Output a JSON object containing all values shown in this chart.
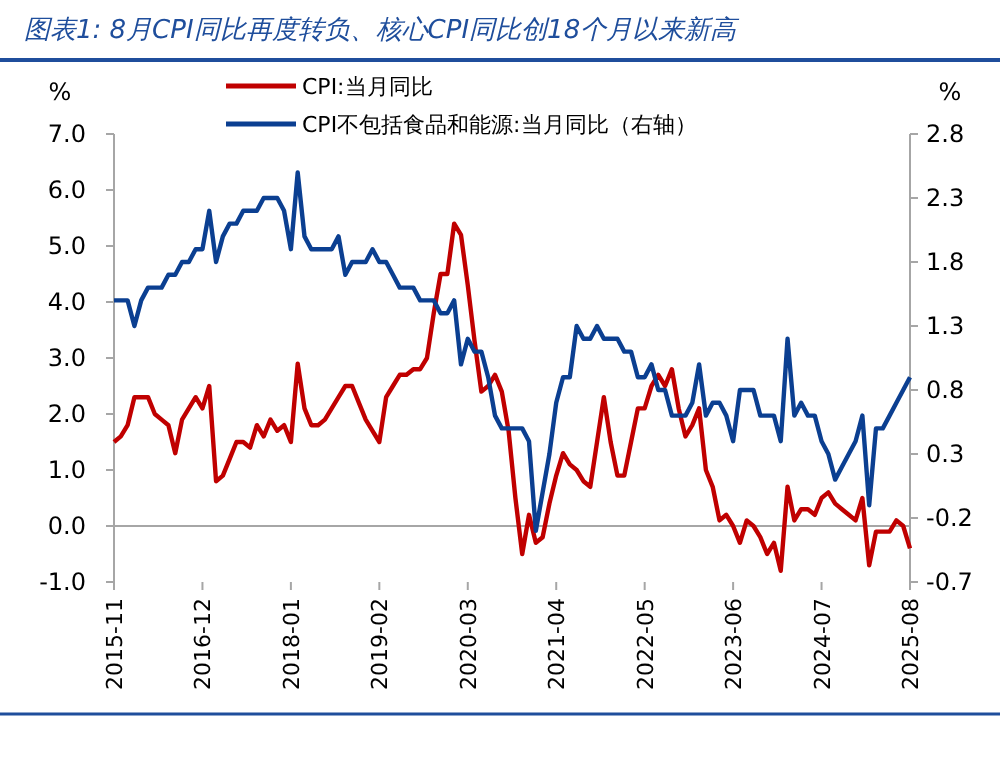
{
  "chart_data": {
    "type": "line",
    "title": "图表1: 8月CPI同比再度转负、核心CPI同比创18个月以来新高",
    "ylabel": "%",
    "y2label": "%",
    "x": [
      "2015-11",
      "2015-12",
      "2016-01",
      "2016-02",
      "2016-03",
      "2016-04",
      "2016-05",
      "2016-06",
      "2016-07",
      "2016-08",
      "2016-09",
      "2016-10",
      "2016-11",
      "2016-12",
      "2017-01",
      "2017-02",
      "2017-03",
      "2017-04",
      "2017-05",
      "2017-06",
      "2017-07",
      "2017-08",
      "2017-09",
      "2017-10",
      "2017-11",
      "2017-12",
      "2018-01",
      "2018-02",
      "2018-03",
      "2018-04",
      "2018-05",
      "2018-06",
      "2018-07",
      "2018-08",
      "2018-09",
      "2018-10",
      "2018-11",
      "2018-12",
      "2019-01",
      "2019-02",
      "2019-03",
      "2019-04",
      "2019-05",
      "2019-06",
      "2019-07",
      "2019-08",
      "2019-09",
      "2019-10",
      "2019-11",
      "2019-12",
      "2020-01",
      "2020-02",
      "2020-03",
      "2020-04",
      "2020-05",
      "2020-06",
      "2020-07",
      "2020-08",
      "2020-09",
      "2020-10",
      "2020-11",
      "2020-12",
      "2021-01",
      "2021-02",
      "2021-03",
      "2021-04",
      "2021-05",
      "2021-06",
      "2021-07",
      "2021-08",
      "2021-09",
      "2021-10",
      "2021-11",
      "2021-12",
      "2022-01",
      "2022-02",
      "2022-03",
      "2022-04",
      "2022-05",
      "2022-06",
      "2022-07",
      "2022-08",
      "2022-09",
      "2022-10",
      "2022-11",
      "2022-12",
      "2023-01",
      "2023-02",
      "2023-03",
      "2023-04",
      "2023-05",
      "2023-06",
      "2023-07",
      "2023-08",
      "2023-09",
      "2023-10",
      "2023-11",
      "2023-12",
      "2024-01",
      "2024-02",
      "2024-03",
      "2024-04",
      "2024-05",
      "2024-06",
      "2024-07",
      "2024-08",
      "2024-09",
      "2024-10",
      "2024-11",
      "2024-12",
      "2025-01",
      "2025-02",
      "2025-03",
      "2025-04",
      "2025-05",
      "2025-06",
      "2025-07",
      "2025-08"
    ],
    "series": [
      {
        "name": "CPI:当月同比",
        "color": "#c00000",
        "values": [
          1.5,
          1.6,
          1.8,
          2.3,
          2.3,
          2.3,
          2.0,
          1.9,
          1.8,
          1.3,
          1.9,
          2.1,
          2.3,
          2.1,
          2.5,
          0.8,
          0.9,
          1.2,
          1.5,
          1.5,
          1.4,
          1.8,
          1.6,
          1.9,
          1.7,
          1.8,
          1.5,
          2.9,
          2.1,
          1.8,
          1.8,
          1.9,
          2.1,
          2.3,
          2.5,
          2.5,
          2.2,
          1.9,
          1.7,
          1.5,
          2.3,
          2.5,
          2.7,
          2.7,
          2.8,
          2.8,
          3.0,
          3.8,
          4.5,
          4.5,
          5.4,
          5.2,
          4.3,
          3.3,
          2.4,
          2.5,
          2.7,
          2.4,
          1.7,
          0.5,
          -0.5,
          0.2,
          -0.3,
          -0.2,
          0.4,
          0.9,
          1.3,
          1.1,
          1.0,
          0.8,
          0.7,
          1.5,
          2.3,
          1.5,
          0.9,
          0.9,
          1.5,
          2.1,
          2.1,
          2.5,
          2.7,
          2.5,
          2.8,
          2.1,
          1.6,
          1.8,
          2.1,
          1.0,
          0.7,
          0.1,
          0.2,
          0.0,
          -0.3,
          0.1,
          0.0,
          -0.2,
          -0.5,
          -0.3,
          -0.8,
          0.7,
          0.1,
          0.3,
          0.3,
          0.2,
          0.5,
          0.6,
          0.4,
          0.3,
          0.2,
          0.1,
          0.5,
          -0.7,
          -0.1,
          -0.1,
          -0.1,
          0.1,
          0.0,
          -0.4
        ]
      },
      {
        "name": "CPI不包括食品和能源:当月同比（右轴）",
        "color": "#0b3f91",
        "axis": "y2",
        "values": [
          1.5,
          1.5,
          1.5,
          1.3,
          1.5,
          1.6,
          1.6,
          1.6,
          1.7,
          1.7,
          1.8,
          1.8,
          1.9,
          1.9,
          2.2,
          1.8,
          2.0,
          2.1,
          2.1,
          2.2,
          2.2,
          2.2,
          2.3,
          2.3,
          2.3,
          2.2,
          1.9,
          2.5,
          2.0,
          1.9,
          1.9,
          1.9,
          1.9,
          2.0,
          1.7,
          1.8,
          1.8,
          1.8,
          1.9,
          1.8,
          1.8,
          1.7,
          1.6,
          1.6,
          1.6,
          1.5,
          1.5,
          1.5,
          1.4,
          1.4,
          1.5,
          1.0,
          1.2,
          1.1,
          1.1,
          0.9,
          0.6,
          0.5,
          0.5,
          0.5,
          0.5,
          0.4,
          -0.3,
          0.0,
          0.3,
          0.7,
          0.9,
          0.9,
          1.3,
          1.2,
          1.2,
          1.3,
          1.2,
          1.2,
          1.2,
          1.1,
          1.1,
          0.9,
          0.9,
          1.0,
          0.8,
          0.8,
          0.6,
          0.6,
          0.6,
          0.7,
          1.0,
          0.6,
          0.7,
          0.7,
          0.6,
          0.4,
          0.8,
          0.8,
          0.8,
          0.6,
          0.6,
          0.6,
          0.4,
          1.2,
          0.6,
          0.7,
          0.6,
          0.6,
          0.4,
          0.3,
          0.1,
          0.2,
          0.3,
          0.4,
          0.6,
          -0.1,
          0.5,
          0.5,
          0.6,
          0.7,
          0.8,
          0.9
        ]
      }
    ],
    "xlim": [
      "2015-11",
      "2025-08"
    ],
    "xticks": [
      "2015-11",
      "2016-12",
      "2018-01",
      "2019-02",
      "2020-03",
      "2021-04",
      "2022-05",
      "2023-06",
      "2024-07",
      "2025-08"
    ],
    "ylim": [
      -1.0,
      7.0
    ],
    "yticks": [
      {
        "value": -1,
        "label": "-1.0"
      },
      {
        "value": 0,
        "label": "0.0"
      },
      {
        "value": 1,
        "label": "1.0"
      },
      {
        "value": 2,
        "label": "2.0"
      },
      {
        "value": 3,
        "label": "3.0"
      },
      {
        "value": 4,
        "label": "4.0"
      },
      {
        "value": 5,
        "label": "5.0"
      },
      {
        "value": 6,
        "label": "6.0"
      },
      {
        "value": 7,
        "label": "7.0"
      }
    ],
    "y2lim": [
      -0.7,
      2.8
    ],
    "y2ticks": [
      {
        "value": -0.7,
        "label": "-0.7"
      },
      {
        "value": -0.2,
        "label": "-0.2"
      },
      0.3,
      0.8,
      1.3,
      1.8,
      2.3,
      2.8
    ],
    "ref_lines": [
      {
        "axis": "y",
        "value": 0,
        "color": "#a6a6a6"
      }
    ],
    "legend": "top",
    "grid": false,
    "marker": "none",
    "line_style": "solid"
  }
}
